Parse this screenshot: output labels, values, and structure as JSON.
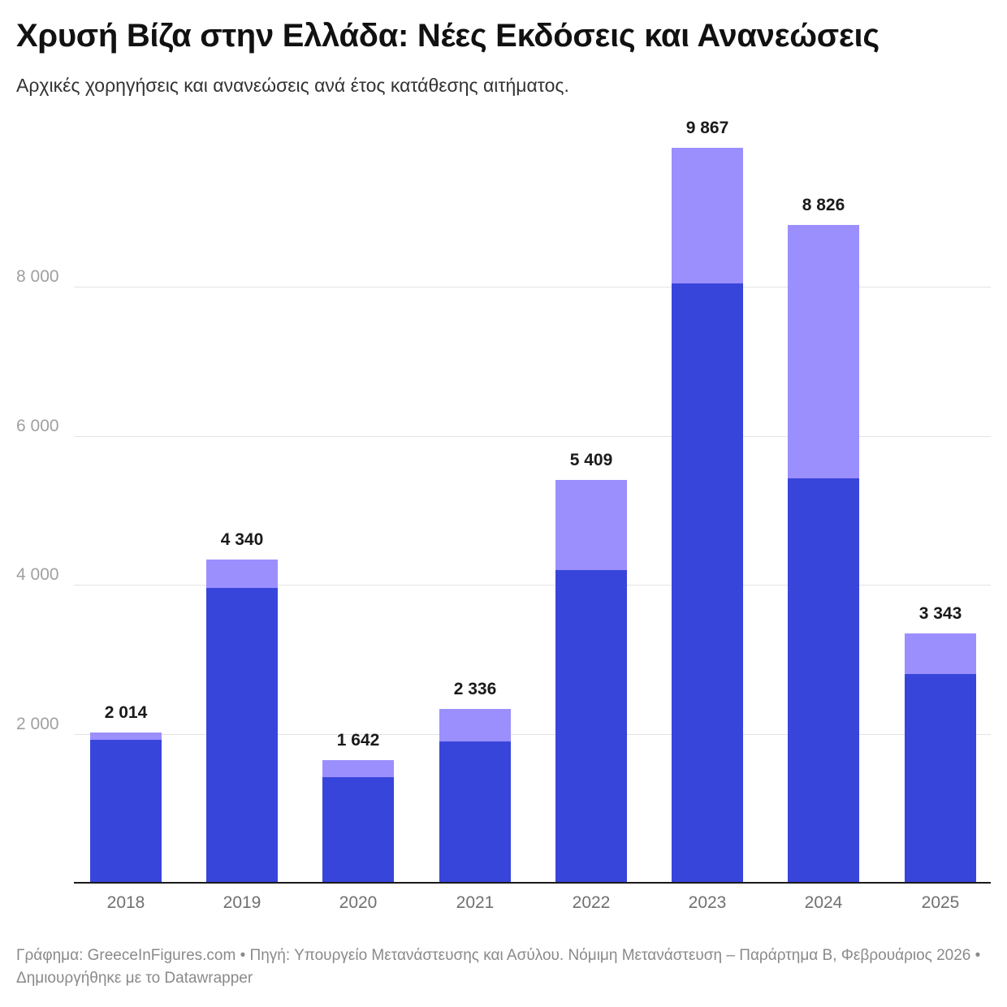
{
  "header": {
    "title": "Χρυσή Βίζα στην Ελλάδα: Νέες Εκδόσεις και Ανανεώσεις",
    "subtitle": "Αρχικές χορηγήσεις και ανανεώσεις ανά έτος κατάθεσης αιτήματος."
  },
  "axis": {
    "y_ticks": [
      "8 000",
      "6 000",
      "4 000",
      "2 000"
    ],
    "x_ticks": [
      "2018",
      "2019",
      "2020",
      "2021",
      "2022",
      "2023",
      "2024",
      "2025"
    ]
  },
  "bars": [
    {
      "year": "2018",
      "total_label": "2 014"
    },
    {
      "year": "2019",
      "total_label": "4 340"
    },
    {
      "year": "2020",
      "total_label": "1 642"
    },
    {
      "year": "2021",
      "total_label": "2 336"
    },
    {
      "year": "2022",
      "total_label": "5 409"
    },
    {
      "year": "2023",
      "total_label": "9 867"
    },
    {
      "year": "2024",
      "total_label": "8 826"
    },
    {
      "year": "2025",
      "total_label": "3 343"
    }
  ],
  "footer": {
    "text": "Γράφημα: GreeceInFigures.com • Πηγή: Υπουργείο Μετανάστευσης και Ασύλου. Νόμιμη Μετανάστευση – Παράρτημα Β, Φεβρουάριος 2026 • Δημιουργήθηκε με το Datawrapper"
  },
  "colors": {
    "initial_grants": "#3845db",
    "renewals": "#9b8ffe",
    "gridline": "#e3e3e3",
    "axis_line": "#1a1a1a"
  },
  "chart_data": {
    "type": "bar",
    "stacked": true,
    "title": "Χρυσή Βίζα στην Ελλάδα: Νέες Εκδόσεις και Ανανεώσεις",
    "subtitle": "Αρχικές χορηγήσεις και ανανεώσεις ανά έτος κατάθεσης αιτήματος.",
    "categories": [
      "2018",
      "2019",
      "2020",
      "2021",
      "2022",
      "2023",
      "2024",
      "2025"
    ],
    "series": [
      {
        "name": "Αρχικές χορηγήσεις",
        "color": "#3845db",
        "values": [
          1918,
          3956,
          1420,
          1900,
          4196,
          8044,
          5428,
          2801
        ]
      },
      {
        "name": "Ανανεώσεις",
        "color": "#9b8ffe",
        "values": [
          96,
          384,
          222,
          436,
          1213,
          1823,
          3398,
          542
        ]
      }
    ],
    "totals": [
      2014,
      4340,
      1642,
      2336,
      5409,
      9867,
      8826,
      3343
    ],
    "xlabel": "",
    "ylabel": "",
    "yticks": [
      2000,
      4000,
      6000,
      8000
    ],
    "ylim": [
      0,
      10000
    ],
    "grid": "horizontal",
    "legend": "none (series described in subtitle)"
  }
}
